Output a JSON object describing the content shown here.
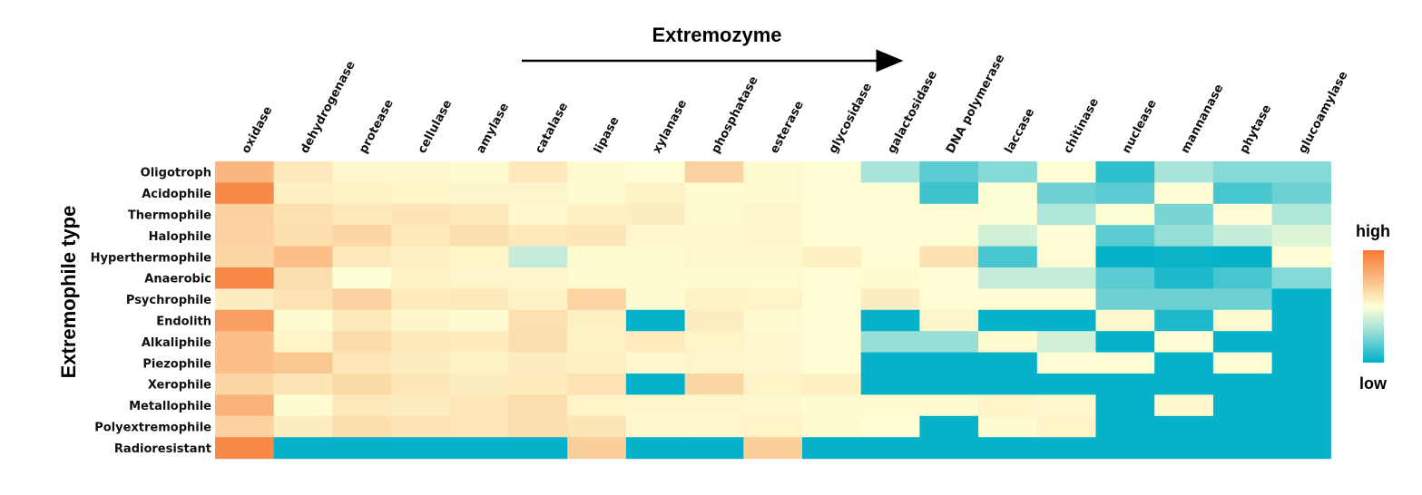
{
  "chart_data": {
    "type": "heatmap",
    "x_title": "Extremozyme",
    "y_title": "Extremophile type",
    "columns": [
      "oxidase",
      "dehydrogenase",
      "protease",
      "cellulase",
      "amylase",
      "catalase",
      "lipase",
      "xylanase",
      "phosphatase",
      "esterase",
      "glycosidase",
      "galactosidase",
      "DNA polymerase",
      "laccase",
      "chitinase",
      "nuclease",
      "mannanase",
      "phytase",
      "glucoamylase"
    ],
    "rows": [
      "Oligotroph",
      "Acidophile",
      "Thermophile",
      "Halophile",
      "Hyperthermophile",
      "Anaerobic",
      "Psychrophile",
      "Endolith",
      "Alkaliphile",
      "Piezophile",
      "Xerophile",
      "Metallophile",
      "Polyextremophile",
      "Radioresistant"
    ],
    "values": [
      [
        0.8,
        0.6,
        0.53,
        0.53,
        0.52,
        0.6,
        0.52,
        0.51,
        0.7,
        0.52,
        0.51,
        0.28,
        0.15,
        0.22,
        0.51,
        0.08,
        0.28,
        0.22,
        0.22
      ],
      [
        0.95,
        0.57,
        0.56,
        0.55,
        0.54,
        0.54,
        0.52,
        0.56,
        0.52,
        0.52,
        0.51,
        0.51,
        0.1,
        0.5,
        0.18,
        0.15,
        0.51,
        0.12,
        0.18
      ],
      [
        0.7,
        0.64,
        0.6,
        0.62,
        0.6,
        0.53,
        0.57,
        0.58,
        0.52,
        0.54,
        0.51,
        0.51,
        0.51,
        0.5,
        0.3,
        0.5,
        0.2,
        0.51,
        0.3
      ],
      [
        0.7,
        0.65,
        0.68,
        0.6,
        0.65,
        0.6,
        0.62,
        0.53,
        0.53,
        0.54,
        0.51,
        0.51,
        0.51,
        0.38,
        0.51,
        0.15,
        0.25,
        0.35,
        0.42
      ],
      [
        0.68,
        0.78,
        0.6,
        0.57,
        0.55,
        0.35,
        0.52,
        0.52,
        0.53,
        0.53,
        0.57,
        0.51,
        0.64,
        0.12,
        0.51,
        0.01,
        0.02,
        0.01,
        0.51
      ],
      [
        0.95,
        0.65,
        0.5,
        0.56,
        0.54,
        0.54,
        0.52,
        0.52,
        0.52,
        0.52,
        0.51,
        0.52,
        0.51,
        0.35,
        0.35,
        0.15,
        0.05,
        0.12,
        0.22
      ],
      [
        0.58,
        0.63,
        0.7,
        0.59,
        0.6,
        0.56,
        0.69,
        0.52,
        0.56,
        0.55,
        0.51,
        0.58,
        0.51,
        0.51,
        0.51,
        0.18,
        0.18,
        0.18,
        0.01
      ],
      [
        0.88,
        0.52,
        0.6,
        0.54,
        0.52,
        0.64,
        0.57,
        0.01,
        0.58,
        0.52,
        0.51,
        0.01,
        0.54,
        0.01,
        0.01,
        0.53,
        0.05,
        0.52,
        0.01
      ],
      [
        0.78,
        0.55,
        0.66,
        0.6,
        0.59,
        0.65,
        0.56,
        0.59,
        0.55,
        0.53,
        0.51,
        0.25,
        0.25,
        0.52,
        0.38,
        0.01,
        0.51,
        0.01,
        0.01
      ],
      [
        0.78,
        0.75,
        0.61,
        0.58,
        0.56,
        0.58,
        0.57,
        0.53,
        0.54,
        0.53,
        0.51,
        0.01,
        0.01,
        0.01,
        0.51,
        0.51,
        0.01,
        0.51,
        0.01
      ],
      [
        0.68,
        0.62,
        0.67,
        0.61,
        0.58,
        0.59,
        0.63,
        0.01,
        0.68,
        0.55,
        0.57,
        0.01,
        0.01,
        0.01,
        0.01,
        0.01,
        0.01,
        0.01,
        0.01
      ],
      [
        0.82,
        0.52,
        0.6,
        0.58,
        0.61,
        0.65,
        0.55,
        0.54,
        0.54,
        0.53,
        0.52,
        0.52,
        0.52,
        0.55,
        0.53,
        0.01,
        0.53,
        0.01,
        0.01
      ],
      [
        0.7,
        0.58,
        0.65,
        0.62,
        0.61,
        0.65,
        0.62,
        0.53,
        0.53,
        0.55,
        0.52,
        0.51,
        0.01,
        0.52,
        0.55,
        0.01,
        0.01,
        0.01,
        0.01
      ],
      [
        0.95,
        0.01,
        0.01,
        0.01,
        0.01,
        0.01,
        0.72,
        0.01,
        0.01,
        0.72,
        0.01,
        0.01,
        0.01,
        0.01,
        0.01,
        0.01,
        0.01,
        0.01,
        0.01
      ]
    ],
    "color_scale": {
      "high": "#f77936",
      "mid": "#ffffd6",
      "low": "#00b0c8"
    },
    "legend": {
      "high_label": "high",
      "low_label": "low",
      "position": "right"
    }
  }
}
